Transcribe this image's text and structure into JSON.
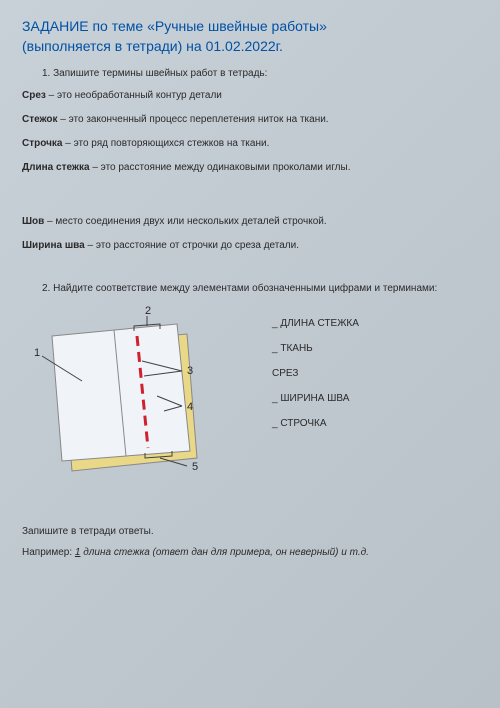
{
  "title": "ЗАДАНИЕ по теме «Ручные швейные работы»",
  "subtitle": "(выполняется в тетради) на 01.02.2022г.",
  "task1": {
    "number": "1.",
    "text": "Запишите термины швейных работ в тетрадь:"
  },
  "terms": [
    {
      "bold": "Срез",
      "text": " – это необработанный контур детали"
    },
    {
      "bold": "Стежок",
      "text": " – это законченный процесс переплетения ниток на ткани."
    },
    {
      "bold": "Строчка",
      "text": " – это ряд повторяющихся стежков на ткани."
    },
    {
      "bold": "Длина стежка",
      "text": " – это расстояние между одинаковыми проколами иглы."
    }
  ],
  "terms2": [
    {
      "bold": "Шов",
      "text": " – место соединения двух или нескольких деталей строчкой."
    },
    {
      "bold": "Ширина шва",
      "text": " – это расстояние от строчки до среза детали."
    }
  ],
  "task2": {
    "number": "2.",
    "text": "Найдите соответствие между элементами обозначенными цифрами и терминами:"
  },
  "matchTerms": [
    "_ ДЛИНА СТЕЖКА",
    "_ ТКАНЬ",
    "   СРЕЗ",
    "_ ШИРИНА ШВА",
    "_ СТРОЧКА"
  ],
  "diagramLabels": {
    "n1": "1",
    "n2": "2",
    "n3": "3",
    "n4": "4",
    "n5": "5"
  },
  "footer": {
    "line1": "Запишите в тетради ответы.",
    "line2_prefix": "Например: ",
    "line2_underline": "1",
    "line2_italic": " длина стежка (ответ дан для примера, он неверный) и т.д."
  },
  "colors": {
    "titleColor": "#0051a3",
    "textColor": "#2a2a2a",
    "fabricBack": "#e8d888",
    "fabricFront": "#f0f4f8",
    "stitchColor": "#d02030",
    "lineColor": "#404040"
  }
}
